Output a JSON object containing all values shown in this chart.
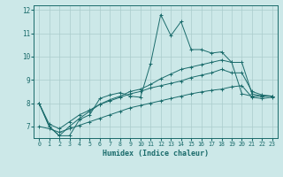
{
  "xlabel": "Humidex (Indice chaleur)",
  "background_color": "#cce8e8",
  "grid_color": "#aacccc",
  "line_color": "#1a6b6b",
  "xlim": [
    -0.5,
    23.5
  ],
  "ylim": [
    6.5,
    12.2
  ],
  "x_ticks": [
    0,
    1,
    2,
    3,
    4,
    5,
    6,
    7,
    8,
    9,
    10,
    11,
    12,
    13,
    14,
    15,
    16,
    17,
    18,
    19,
    20,
    21,
    22,
    23
  ],
  "y_ticks": [
    7,
    8,
    9,
    10,
    11,
    12
  ],
  "series": [
    [
      8.0,
      7.0,
      6.6,
      6.6,
      7.3,
      7.5,
      8.2,
      8.35,
      8.45,
      8.3,
      8.25,
      9.7,
      11.8,
      10.9,
      11.5,
      10.3,
      10.3,
      10.15,
      10.2,
      9.75,
      8.4,
      8.3,
      8.3,
      8.3
    ],
    [
      8.0,
      7.0,
      6.6,
      7.0,
      7.35,
      7.65,
      7.95,
      8.15,
      8.3,
      8.5,
      8.6,
      8.8,
      9.05,
      9.25,
      9.45,
      9.55,
      9.65,
      9.75,
      9.85,
      9.75,
      9.75,
      8.4,
      8.3,
      8.3
    ],
    [
      8.0,
      7.1,
      6.9,
      7.2,
      7.5,
      7.7,
      7.95,
      8.1,
      8.25,
      8.4,
      8.5,
      8.65,
      8.75,
      8.85,
      8.95,
      9.1,
      9.2,
      9.3,
      9.45,
      9.3,
      9.3,
      8.5,
      8.35,
      8.3
    ],
    [
      7.0,
      6.9,
      6.75,
      6.9,
      7.05,
      7.2,
      7.35,
      7.5,
      7.65,
      7.8,
      7.9,
      8.0,
      8.1,
      8.2,
      8.3,
      8.4,
      8.48,
      8.55,
      8.6,
      8.7,
      8.75,
      8.25,
      8.2,
      8.25
    ]
  ]
}
